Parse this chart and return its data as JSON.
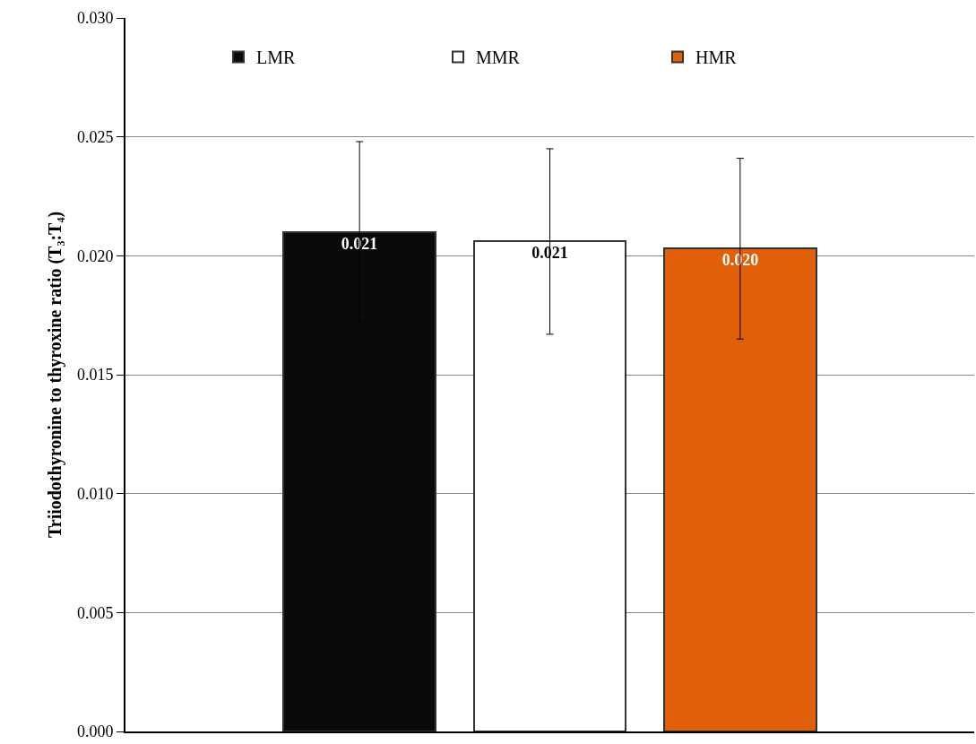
{
  "chart_data": {
    "type": "bar",
    "ylabel": "Triiodothyronine to thyroxine ratio (T₃:T₄)",
    "categories": [
      null,
      null,
      null
    ],
    "series": [
      {
        "name": "LMR",
        "color": "#0a0a0a",
        "values": [
          0.021,
          null,
          null
        ],
        "errors": [
          0.0038,
          null,
          null
        ],
        "value_labels": [
          "0.021",
          null,
          null
        ]
      },
      {
        "name": "MMR",
        "color": "#ffffff",
        "values": [
          null,
          0.0206,
          null
        ],
        "errors": [
          null,
          0.0039,
          null
        ],
        "value_labels": [
          null,
          "0.021",
          null
        ]
      },
      {
        "name": "HMR",
        "color": "#e0600a",
        "values": [
          null,
          null,
          0.0203
        ],
        "errors": [
          null,
          null,
          0.0038
        ],
        "value_labels": [
          null,
          null,
          "0.020"
        ]
      }
    ],
    "ylim": [
      0,
      0.03
    ],
    "yticks": [
      {
        "value": 0,
        "label": "0.000"
      },
      {
        "value": 0.005,
        "label": "0.005"
      },
      {
        "value": 0.01,
        "label": "0.010"
      },
      {
        "value": 0.015,
        "label": "0.015"
      },
      {
        "value": 0.02,
        "label": "0.020"
      },
      {
        "value": 0.025,
        "label": "0.025"
      },
      {
        "value": 0.03,
        "label": "0.030"
      }
    ],
    "grid": "y",
    "legend": "top",
    "tick_labels": "y"
  }
}
